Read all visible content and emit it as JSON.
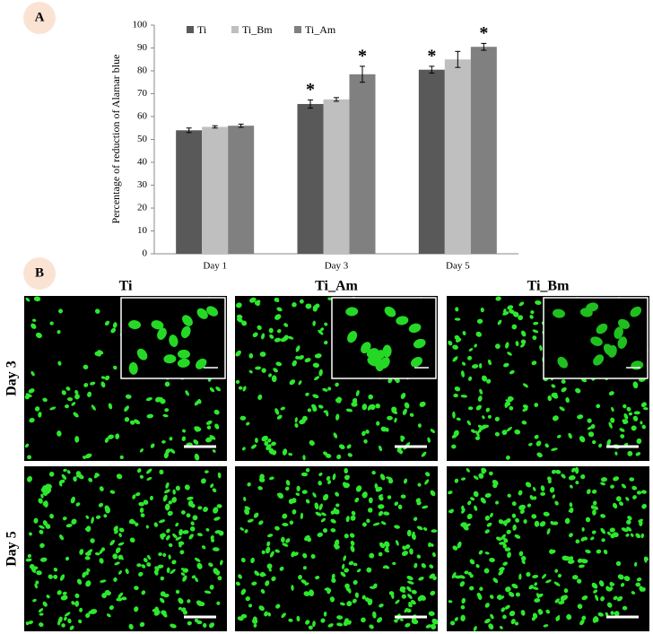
{
  "chart_data": {
    "type": "bar",
    "ylabel": "Percentage of reduction of Alamar blue",
    "categories": [
      "Day 1",
      "Day 3",
      "Day 5"
    ],
    "series": [
      {
        "name": "Ti",
        "color": "#595959",
        "values": [
          54,
          65.5,
          80.5
        ],
        "errors": [
          1,
          1.8,
          1.5
        ]
      },
      {
        "name": "Ti_Bm",
        "color": "#bfbfbf",
        "values": [
          55.5,
          67.5,
          85
        ],
        "errors": [
          0.5,
          0.8,
          3.5
        ]
      },
      {
        "name": "Ti_Am",
        "color": "#808080",
        "values": [
          56,
          78.5,
          90.5
        ],
        "errors": [
          0.7,
          3.5,
          1.5
        ]
      }
    ],
    "ylim": [
      0,
      100
    ],
    "yticks": [
      0,
      10,
      20,
      30,
      40,
      50,
      60,
      70,
      80,
      90,
      100
    ],
    "legend": "top",
    "annotations": [
      {
        "text": "*",
        "series": 0,
        "category": 1
      },
      {
        "text": "*",
        "series": 2,
        "category": 1
      },
      {
        "text": "*",
        "series": 0,
        "category": 2
      },
      {
        "text": "*",
        "series": 2,
        "category": 2
      }
    ]
  },
  "panel_labels": [
    "A",
    "B"
  ],
  "images": {
    "columns": [
      "Ti",
      "Ti_Am",
      "Ti_Bm"
    ],
    "rows": [
      "Day 3",
      "Day 5"
    ]
  }
}
